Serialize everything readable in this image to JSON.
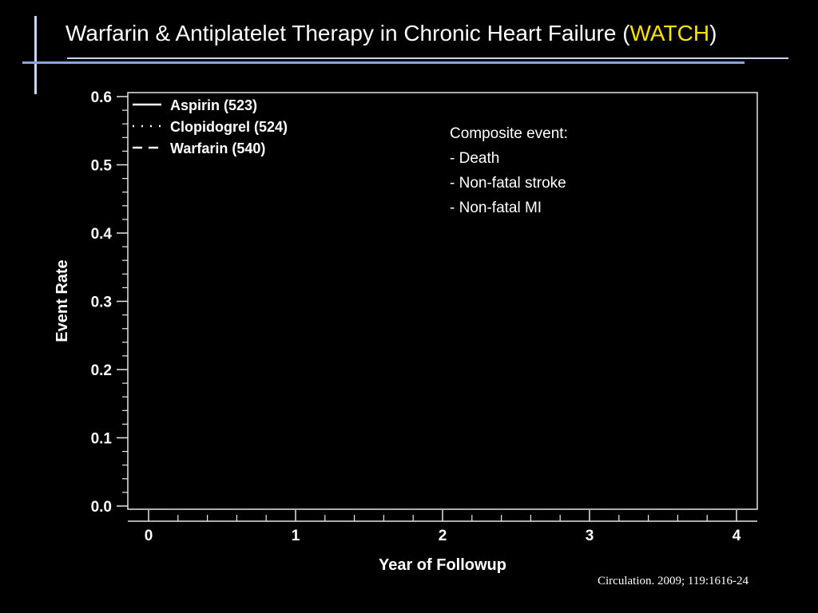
{
  "slide": {
    "title_main": "Warfarin & Antiplatelet Therapy in Chronic Heart Failure (",
    "title_accent": "WATCH",
    "title_close": ")",
    "accent_color": "#ffe300",
    "citation": "Circulation. 2009; 119:1616-24"
  },
  "annotation": {
    "heading": "Composite event:",
    "items": [
      "- Death",
      "- Non-fatal stroke",
      "- Non-fatal MI"
    ]
  },
  "chart_data": {
    "type": "line",
    "title": "",
    "xlabel": "Year of Followup",
    "ylabel": "Event Rate",
    "xlim": [
      0,
      4
    ],
    "ylim": [
      0,
      0.6
    ],
    "x_ticks": [
      0,
      1,
      2,
      3,
      4
    ],
    "x_tick_labels": [
      "0",
      "1",
      "2",
      "3",
      "4"
    ],
    "y_ticks": [
      0.0,
      0.1,
      0.2,
      0.3,
      0.4,
      0.5,
      0.6
    ],
    "y_tick_labels": [
      "0.0",
      "0.1",
      "0.2",
      "0.3",
      "0.4",
      "0.5",
      "0.6"
    ],
    "grid": false,
    "legend_position": "top-left",
    "series": [
      {
        "name": "Aspirin (523)",
        "line_style": "solid",
        "values": []
      },
      {
        "name": "Clopidogrel (524)",
        "line_style": "dotted",
        "values": []
      },
      {
        "name": "Warfarin (540)",
        "line_style": "dashed",
        "values": []
      }
    ]
  }
}
